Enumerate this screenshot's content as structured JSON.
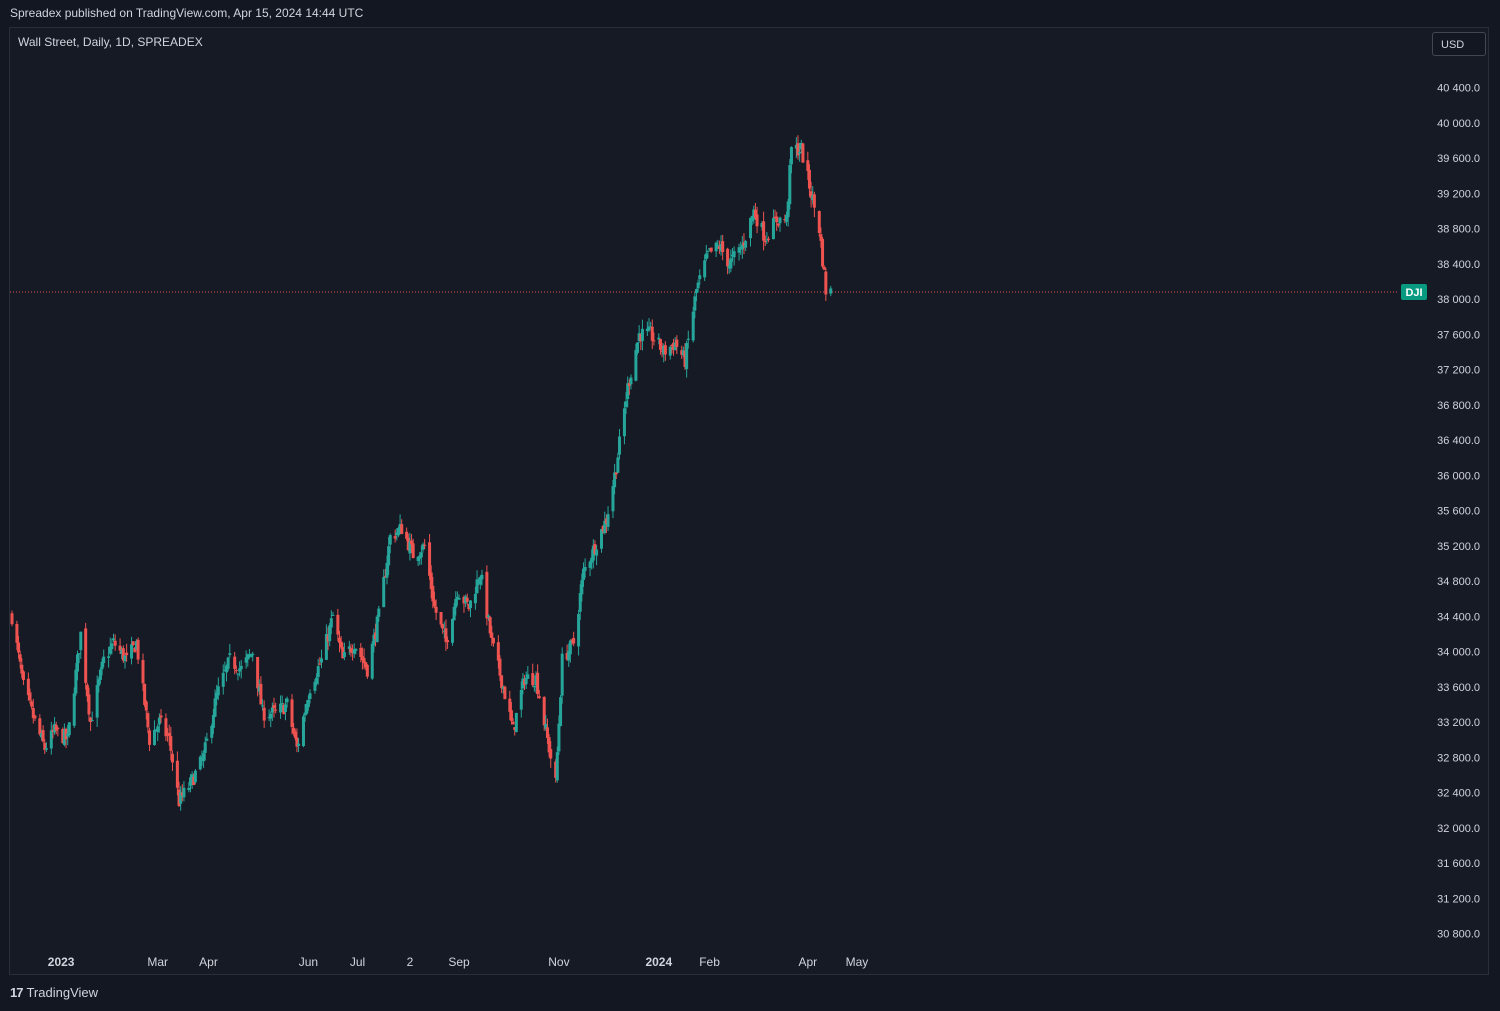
{
  "header": {
    "published_text": "Spreadex published on TradingView.com, Apr 15, 2024 14:44 UTC"
  },
  "chart_header": {
    "symbol_line": "Wall Street, Daily, 1D, SPREADEX",
    "currency_button": "USD"
  },
  "footer": {
    "brand": "TradingView",
    "brand_icon": "tradingview-logo-icon"
  },
  "colors": {
    "background": "#161a25",
    "up_candle": "#26a69a",
    "down_candle": "#ef5350",
    "price_line": "#ef5350",
    "axis_text": "#d1d4dc",
    "price_tag_bg": "#089981"
  },
  "chart_data": {
    "type": "candlestick",
    "title": "Wall Street, Daily, 1D, SPREADEX",
    "y_axis_side": "right",
    "ylim": [
      30600,
      40800
    ],
    "yticks": [
      "40400.0",
      "40000.0",
      "39600.0",
      "39200.0",
      "38800.0",
      "38400.0",
      "38000.0",
      "37600.0",
      "37200.0",
      "36800.0",
      "36400.0",
      "36000.0",
      "35600.0",
      "35200.0",
      "34800.0",
      "34400.0",
      "34000.0",
      "33600.0",
      "33200.0",
      "32800.0",
      "32400.0",
      "32000.0",
      "31600.0",
      "31200.0",
      "30800.0"
    ],
    "xticks": [
      "2023",
      "Mar",
      "Apr",
      "Jun",
      "Jul",
      "2",
      "Sep",
      "Nov",
      "2024",
      "Feb",
      "Apr",
      "May"
    ],
    "xtick_dates": [
      "2023-01-01",
      "2023-03-01",
      "2023-04-01",
      "2023-06-01",
      "2023-07-01",
      "2023-08-02",
      "2023-09-01",
      "2023-11-01",
      "2024-01-01",
      "2024-02-01",
      "2024-04-01",
      "2024-05-01"
    ],
    "x_range": [
      "2022-12-02",
      "2024-05-31"
    ],
    "price_line": {
      "label": "DJI",
      "value": 38080
    },
    "grid": false,
    "series_anchors": [
      {
        "date": "2022-12-02",
        "close": 34400
      },
      {
        "date": "2022-12-09",
        "close": 33600
      },
      {
        "date": "2022-12-16",
        "close": 33200
      },
      {
        "date": "2022-12-22",
        "close": 32900
      },
      {
        "date": "2022-12-28",
        "close": 33100
      },
      {
        "date": "2023-01-05",
        "close": 33000
      },
      {
        "date": "2023-01-13",
        "close": 34200
      },
      {
        "date": "2023-01-19",
        "close": 33200
      },
      {
        "date": "2023-01-27",
        "close": 33900
      },
      {
        "date": "2023-02-02",
        "close": 34100
      },
      {
        "date": "2023-02-10",
        "close": 33900
      },
      {
        "date": "2023-02-16",
        "close": 34100
      },
      {
        "date": "2023-02-24",
        "close": 33000
      },
      {
        "date": "2023-03-02",
        "close": 33200
      },
      {
        "date": "2023-03-08",
        "close": 33000
      },
      {
        "date": "2023-03-14",
        "close": 32300
      },
      {
        "date": "2023-03-21",
        "close": 32500
      },
      {
        "date": "2023-03-29",
        "close": 32800
      },
      {
        "date": "2023-04-06",
        "close": 33500
      },
      {
        "date": "2023-04-14",
        "close": 33900
      },
      {
        "date": "2023-04-21",
        "close": 33800
      },
      {
        "date": "2023-04-28",
        "close": 34000
      },
      {
        "date": "2023-05-04",
        "close": 33300
      },
      {
        "date": "2023-05-12",
        "close": 33300
      },
      {
        "date": "2023-05-19",
        "close": 33400
      },
      {
        "date": "2023-05-25",
        "close": 32900
      },
      {
        "date": "2023-06-02",
        "close": 33600
      },
      {
        "date": "2023-06-09",
        "close": 33900
      },
      {
        "date": "2023-06-16",
        "close": 34400
      },
      {
        "date": "2023-06-22",
        "close": 33900
      },
      {
        "date": "2023-06-29",
        "close": 34100
      },
      {
        "date": "2023-07-07",
        "close": 33800
      },
      {
        "date": "2023-07-14",
        "close": 34400
      },
      {
        "date": "2023-07-21",
        "close": 35300
      },
      {
        "date": "2023-07-28",
        "close": 35400
      },
      {
        "date": "2023-08-04",
        "close": 35100
      },
      {
        "date": "2023-08-11",
        "close": 35200
      },
      {
        "date": "2023-08-17",
        "close": 34500
      },
      {
        "date": "2023-08-24",
        "close": 34100
      },
      {
        "date": "2023-08-31",
        "close": 34700
      },
      {
        "date": "2023-09-07",
        "close": 34500
      },
      {
        "date": "2023-09-14",
        "close": 34900
      },
      {
        "date": "2023-09-21",
        "close": 34100
      },
      {
        "date": "2023-09-28",
        "close": 33600
      },
      {
        "date": "2023-10-04",
        "close": 33100
      },
      {
        "date": "2023-10-11",
        "close": 33700
      },
      {
        "date": "2023-10-18",
        "close": 33700
      },
      {
        "date": "2023-10-24",
        "close": 33100
      },
      {
        "date": "2023-10-30",
        "close": 32500
      },
      {
        "date": "2023-11-03",
        "close": 33900
      },
      {
        "date": "2023-11-10",
        "close": 34100
      },
      {
        "date": "2023-11-16",
        "close": 34900
      },
      {
        "date": "2023-11-23",
        "close": 35200
      },
      {
        "date": "2023-11-30",
        "close": 35500
      },
      {
        "date": "2023-12-06",
        "close": 36100
      },
      {
        "date": "2023-12-13",
        "close": 37000
      },
      {
        "date": "2023-12-20",
        "close": 37600
      },
      {
        "date": "2023-12-27",
        "close": 37600
      },
      {
        "date": "2024-01-04",
        "close": 37400
      },
      {
        "date": "2024-01-11",
        "close": 37500
      },
      {
        "date": "2024-01-17",
        "close": 37300
      },
      {
        "date": "2024-01-24",
        "close": 38100
      },
      {
        "date": "2024-01-31",
        "close": 38500
      },
      {
        "date": "2024-02-07",
        "close": 38600
      },
      {
        "date": "2024-02-13",
        "close": 38400
      },
      {
        "date": "2024-02-21",
        "close": 38600
      },
      {
        "date": "2024-02-28",
        "close": 39000
      },
      {
        "date": "2024-03-06",
        "close": 38700
      },
      {
        "date": "2024-03-13",
        "close": 38900
      },
      {
        "date": "2024-03-19",
        "close": 38900
      },
      {
        "date": "2024-03-22",
        "close": 39700
      },
      {
        "date": "2024-03-28",
        "close": 39700
      },
      {
        "date": "2024-04-03",
        "close": 39200
      },
      {
        "date": "2024-04-08",
        "close": 38800
      },
      {
        "date": "2024-04-12",
        "close": 38100
      },
      {
        "date": "2024-04-15",
        "close": 38080
      }
    ]
  }
}
